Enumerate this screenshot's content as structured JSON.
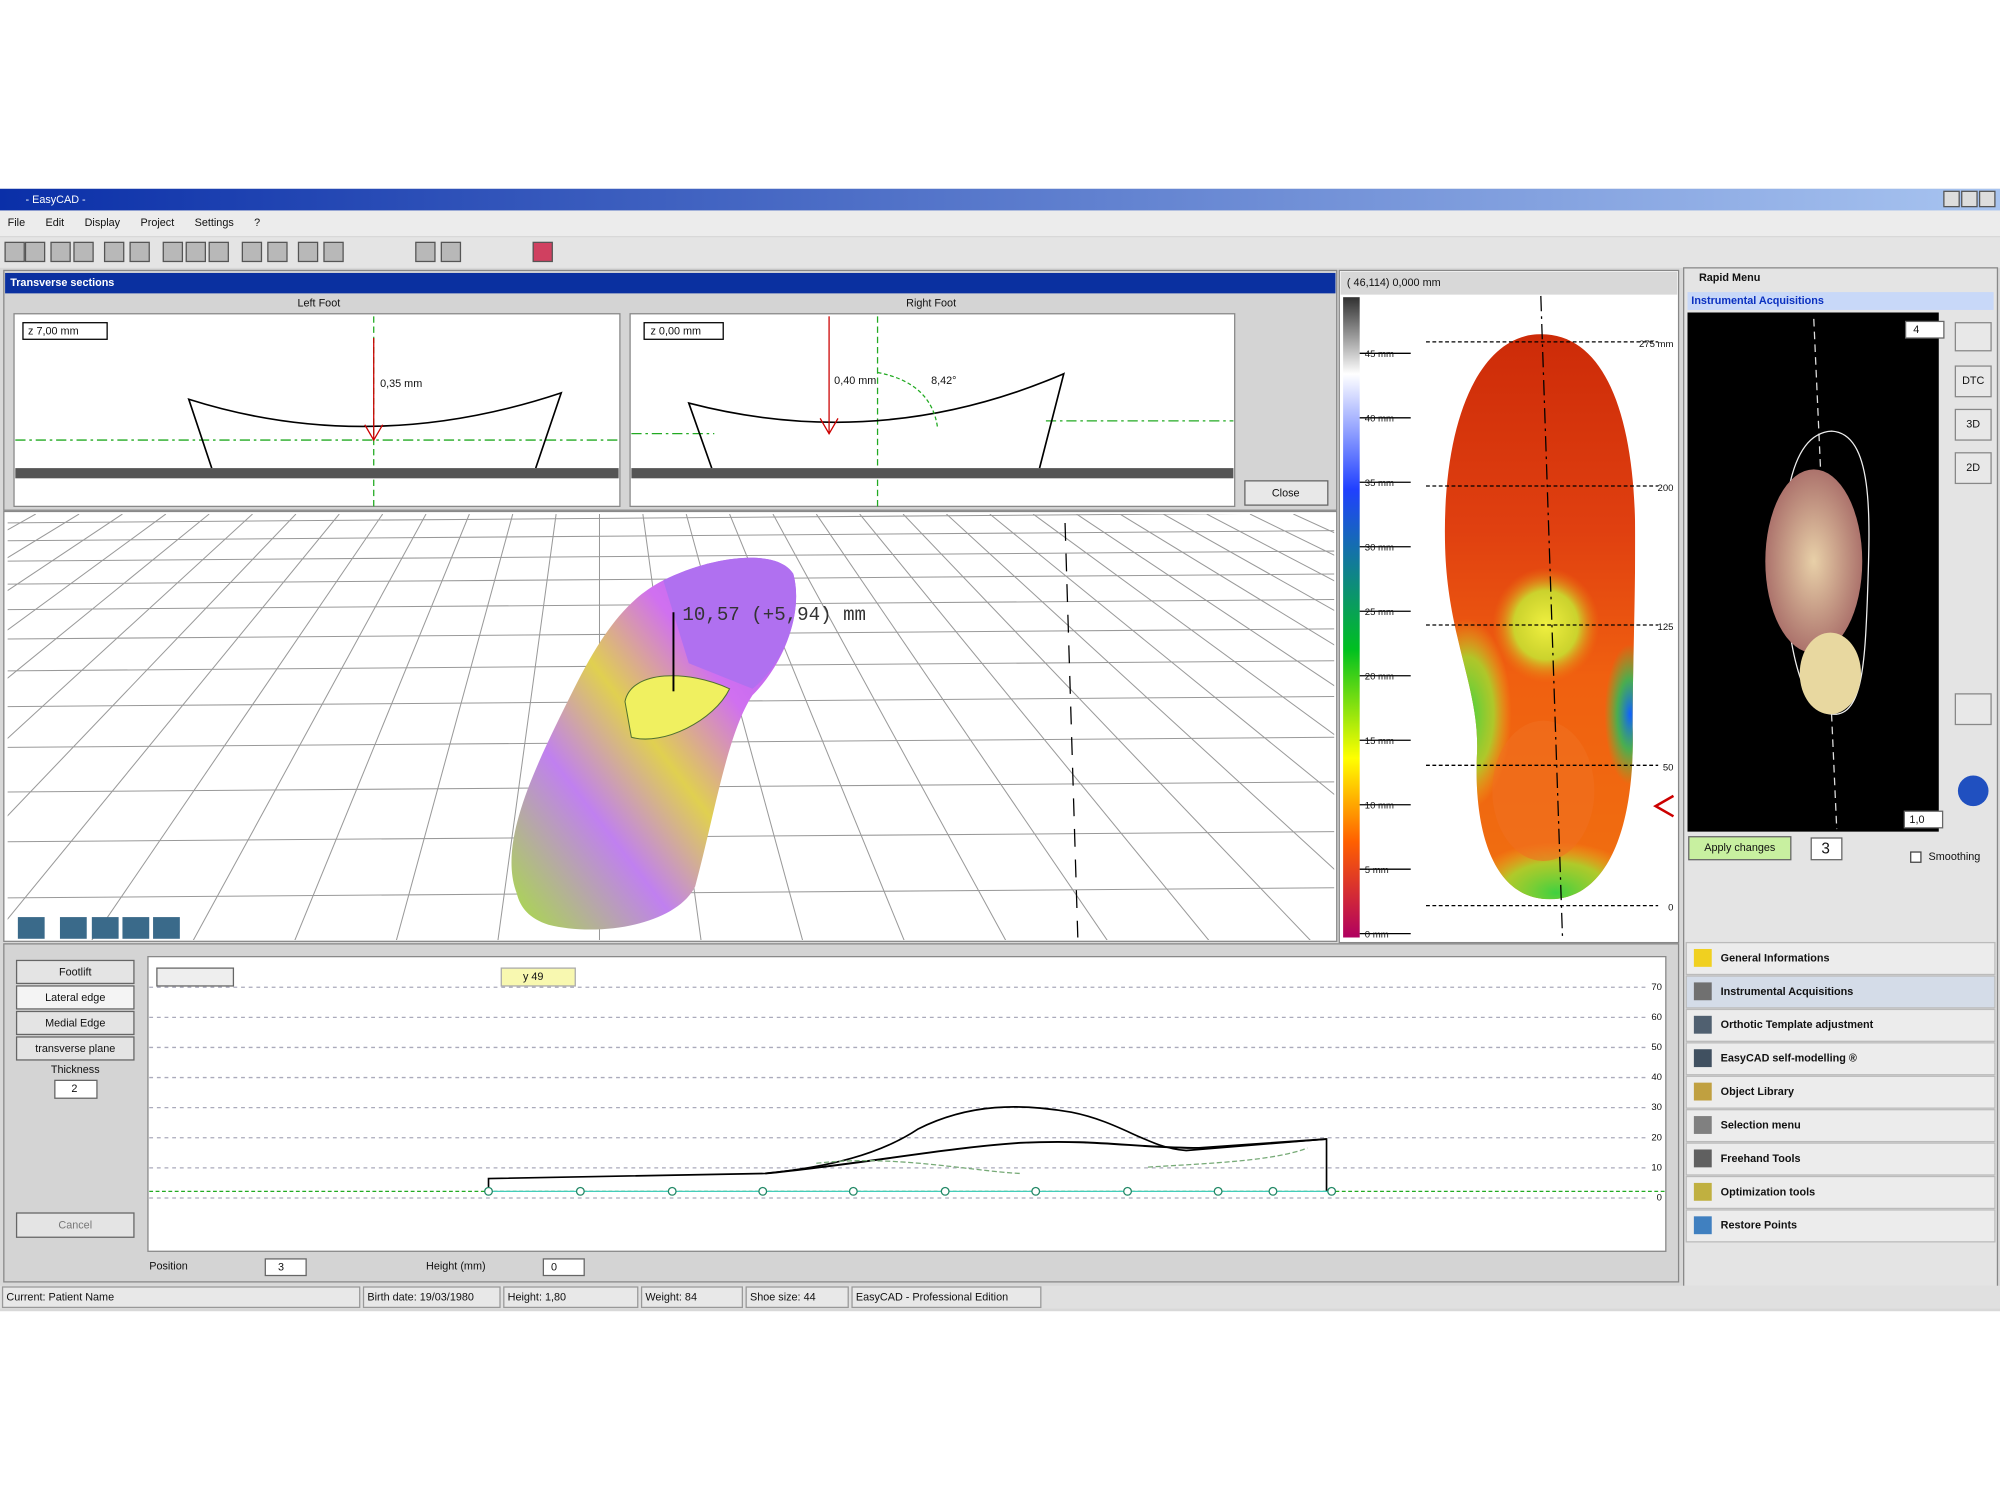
{
  "window": {
    "title": "- EasyCAD -",
    "menu": [
      "File",
      "Edit",
      "Display",
      "Project",
      "Settings",
      "?"
    ]
  },
  "transverse": {
    "title": "Transverse sections",
    "left": {
      "label": "Left Foot",
      "z": "z 7,00 mm",
      "measure": "0,35 mm"
    },
    "right": {
      "label": "Right Foot",
      "z": "z 0,00 mm",
      "measure": "0,40 mm",
      "angle": "8,42°"
    },
    "close": "Close"
  },
  "view3d": {
    "annotation": "10,57 (+5,94) mm"
  },
  "pressure": {
    "header": "( 46,114)  0,000 mm",
    "scale": [
      "45 mm",
      "40 mm",
      "35 mm",
      "30 mm",
      "25 mm",
      "20 mm",
      "15 mm",
      "10 mm",
      "5 mm",
      "0 mm"
    ],
    "ruler": [
      "275 mm",
      "200",
      "125",
      "50",
      "0"
    ]
  },
  "rapid_menu": {
    "title": "Rapid Menu",
    "section": "Instrumental Acquisitions",
    "side_buttons": [
      "DTC",
      "3D",
      "2D"
    ],
    "zoom": "4",
    "rotation": "1,0",
    "apply": "Apply changes",
    "smoothing_value": "3",
    "smoothing": "Smoothing",
    "items": [
      "General Informations",
      "Instrumental Acquisitions",
      "Orthotic Template adjustment",
      "EasyCAD self-modelling ®",
      "Object Library",
      "Selection menu",
      "Freehand Tools",
      "Optimization tools",
      "Restore Points"
    ]
  },
  "editor": {
    "buttons": [
      "Footlift",
      "Lateral edge",
      "Medial Edge",
      "transverse plane"
    ],
    "thickness_label": "Thickness",
    "thickness": "2",
    "cancel": "Cancel",
    "tab": "y 49",
    "axis": [
      "70",
      "60",
      "50",
      "40",
      "30",
      "20",
      "10",
      "0"
    ],
    "position_label": "Position",
    "position": "3",
    "height_label": "Height (mm)",
    "height": "0"
  },
  "status": [
    "Current: Patient Name",
    "Birth date: 19/03/1980",
    "Height: 1,80",
    "Weight: 84",
    "Shoe size: 44",
    "EasyCAD - Professional Edition"
  ]
}
